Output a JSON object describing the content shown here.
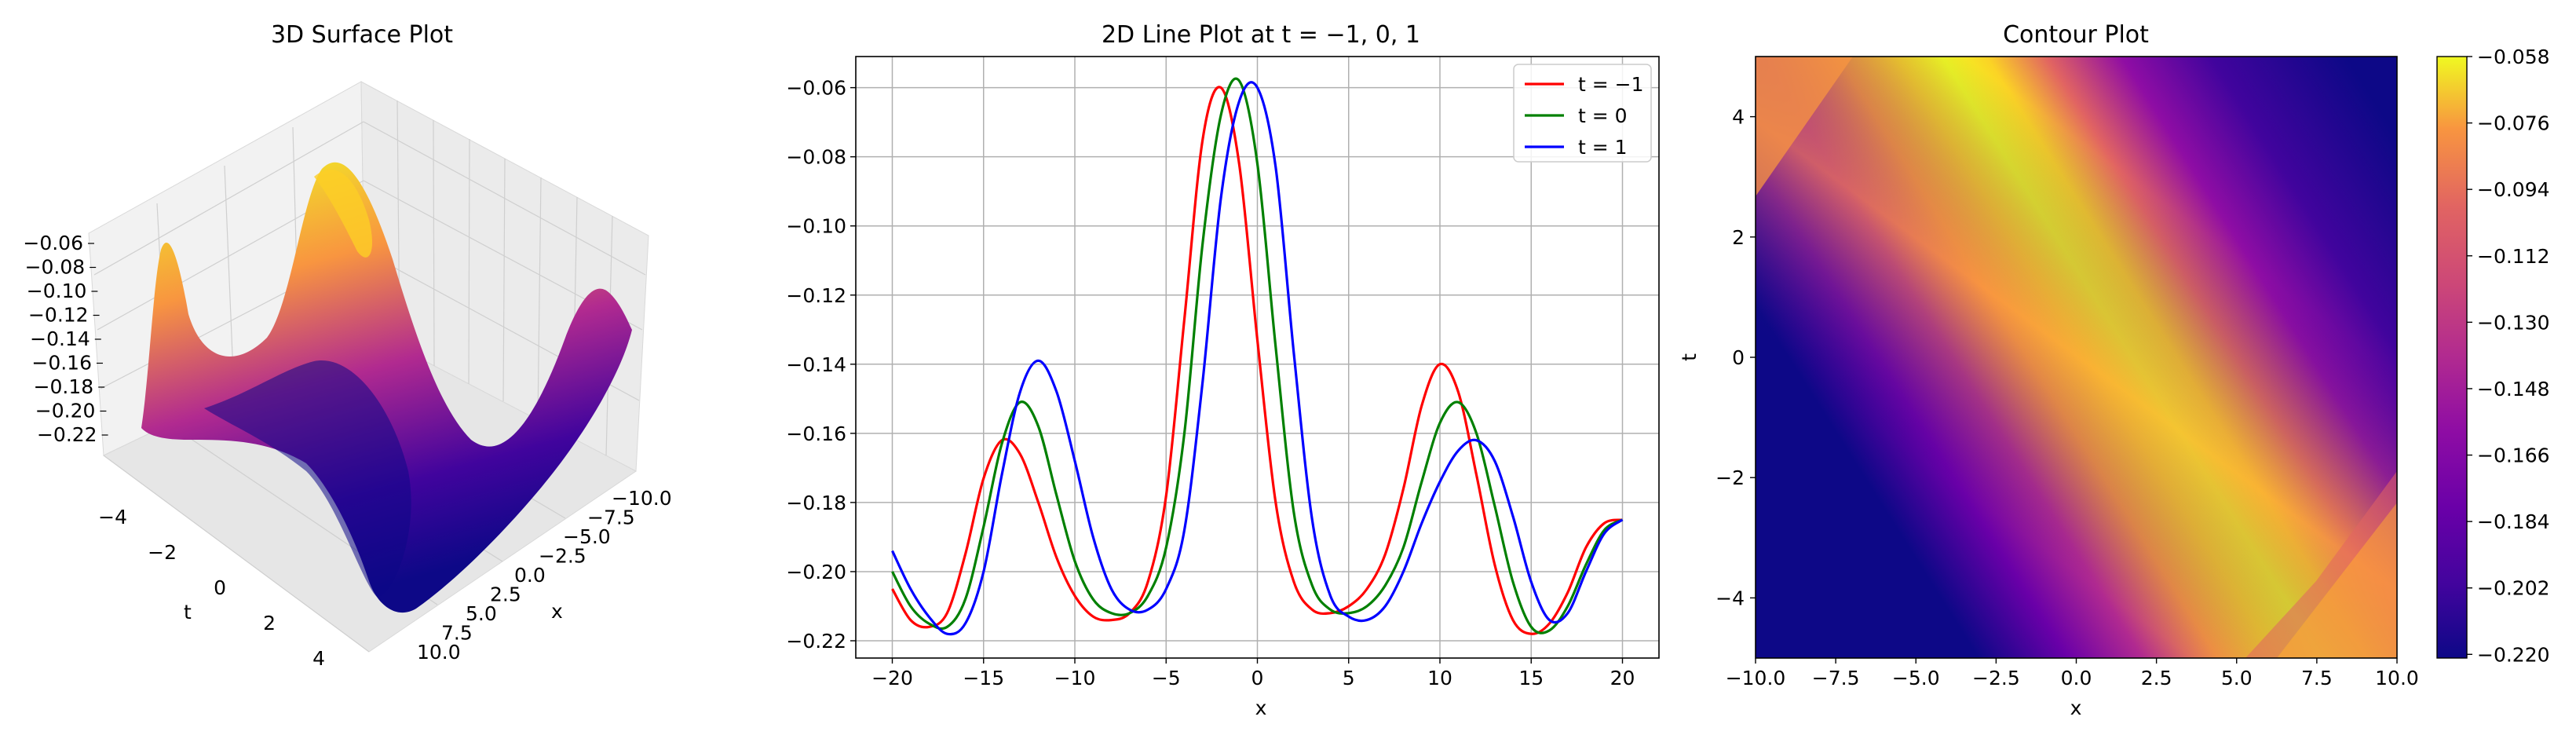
{
  "figure": {
    "panels": [
      {
        "title": "3D Surface Plot",
        "xlabel": "x",
        "ylabel": "t"
      },
      {
        "title": "2D Line Plot at t = −1, 0, 1",
        "xlabel": "x"
      },
      {
        "title": "Contour Plot",
        "xlabel": "x",
        "ylabel": "t"
      }
    ]
  },
  "chart_data": [
    {
      "type": "surface",
      "title": "3D Surface Plot",
      "xlabel": "x",
      "ylabel": "t",
      "colormap": "plasma",
      "x_ticks": [
        "−10.0",
        "−7.5",
        "−5.0",
        "−2.5",
        "0.0",
        "2.5",
        "5.0",
        "7.5",
        "10.0"
      ],
      "t_ticks": [
        "−4",
        "−2",
        "0",
        "2",
        "4"
      ],
      "z_ticks": [
        "−0.06",
        "−0.08",
        "−0.10",
        "−0.12",
        "−0.14",
        "−0.16",
        "−0.18",
        "−0.20",
        "−0.22"
      ],
      "xlim": [
        -10,
        10
      ],
      "tlim": [
        -5,
        5
      ],
      "zlim": [
        -0.22,
        -0.058
      ]
    },
    {
      "type": "line",
      "title": "2D Line Plot at t = −1, 0, 1",
      "xlabel": "x",
      "ylabel": "",
      "xlim": [
        -22,
        22
      ],
      "ylim": [
        -0.225,
        -0.051
      ],
      "x_ticks": [
        "−20",
        "−15",
        "−10",
        "−5",
        "0",
        "5",
        "10",
        "15",
        "20"
      ],
      "x_tick_values": [
        -20,
        -15,
        -10,
        -5,
        0,
        5,
        10,
        15,
        20
      ],
      "y_ticks": [
        "−0.06",
        "−0.08",
        "−0.10",
        "−0.12",
        "−0.14",
        "−0.16",
        "−0.18",
        "−0.20",
        "−0.22"
      ],
      "y_tick_values": [
        -0.06,
        -0.08,
        -0.1,
        -0.12,
        -0.14,
        -0.16,
        -0.18,
        -0.2,
        -0.22
      ],
      "grid": true,
      "legend_position": "top-right",
      "series": [
        {
          "name": "t = −1",
          "color": "#ff0000",
          "points": [
            [
              -20,
              -0.205
            ],
            [
              -19,
              -0.214
            ],
            [
              -18,
              -0.216
            ],
            [
              -17,
              -0.212
            ],
            [
              -16,
              -0.195
            ],
            [
              -15,
              -0.173
            ],
            [
              -14,
              -0.162
            ],
            [
              -13,
              -0.166
            ],
            [
              -12,
              -0.18
            ],
            [
              -11,
              -0.196
            ],
            [
              -10,
              -0.207
            ],
            [
              -9,
              -0.213
            ],
            [
              -8,
              -0.214
            ],
            [
              -7,
              -0.212
            ],
            [
              -6,
              -0.203
            ],
            [
              -5,
              -0.178
            ],
            [
              -4,
              -0.127
            ],
            [
              -3,
              -0.075
            ],
            [
              -2,
              -0.06
            ],
            [
              -1,
              -0.082
            ],
            [
              0,
              -0.133
            ],
            [
              1,
              -0.18
            ],
            [
              2,
              -0.203
            ],
            [
              3,
              -0.211
            ],
            [
              4,
              -0.212
            ],
            [
              5,
              -0.21
            ],
            [
              6,
              -0.205
            ],
            [
              7,
              -0.195
            ],
            [
              8,
              -0.176
            ],
            [
              9,
              -0.152
            ],
            [
              10,
              -0.14
            ],
            [
              11,
              -0.148
            ],
            [
              12,
              -0.172
            ],
            [
              13,
              -0.198
            ],
            [
              14,
              -0.214
            ],
            [
              15,
              -0.218
            ],
            [
              16,
              -0.215
            ],
            [
              17,
              -0.206
            ],
            [
              18,
              -0.193
            ],
            [
              19,
              -0.186
            ],
            [
              20,
              -0.185
            ]
          ]
        },
        {
          "name": "t = 0",
          "color": "#008000",
          "points": [
            [
              -20,
              -0.2
            ],
            [
              -19,
              -0.21
            ],
            [
              -18,
              -0.215
            ],
            [
              -17,
              -0.216
            ],
            [
              -16,
              -0.208
            ],
            [
              -15,
              -0.187
            ],
            [
              -14,
              -0.163
            ],
            [
              -13,
              -0.151
            ],
            [
              -12,
              -0.158
            ],
            [
              -11,
              -0.178
            ],
            [
              -10,
              -0.197
            ],
            [
              -9,
              -0.208
            ],
            [
              -8,
              -0.212
            ],
            [
              -7,
              -0.212
            ],
            [
              -6,
              -0.207
            ],
            [
              -5,
              -0.193
            ],
            [
              -4,
              -0.16
            ],
            [
              -3,
              -0.105
            ],
            [
              -2,
              -0.068
            ],
            [
              -1,
              -0.058
            ],
            [
              0,
              -0.082
            ],
            [
              1,
              -0.135
            ],
            [
              2,
              -0.183
            ],
            [
              3,
              -0.204
            ],
            [
              4,
              -0.211
            ],
            [
              5,
              -0.212
            ],
            [
              6,
              -0.21
            ],
            [
              7,
              -0.204
            ],
            [
              8,
              -0.193
            ],
            [
              9,
              -0.174
            ],
            [
              10,
              -0.157
            ],
            [
              11,
              -0.151
            ],
            [
              12,
              -0.16
            ],
            [
              13,
              -0.181
            ],
            [
              14,
              -0.203
            ],
            [
              15,
              -0.216
            ],
            [
              16,
              -0.217
            ],
            [
              17,
              -0.21
            ],
            [
              18,
              -0.198
            ],
            [
              19,
              -0.188
            ],
            [
              20,
              -0.185
            ]
          ]
        },
        {
          "name": "t = 1",
          "color": "#0000ff",
          "points": [
            [
              -20,
              -0.194
            ],
            [
              -19,
              -0.205
            ],
            [
              -18,
              -0.213
            ],
            [
              -17,
              -0.218
            ],
            [
              -16,
              -0.215
            ],
            [
              -15,
              -0.2
            ],
            [
              -14,
              -0.172
            ],
            [
              -13,
              -0.148
            ],
            [
              -12,
              -0.139
            ],
            [
              -11,
              -0.148
            ],
            [
              -10,
              -0.168
            ],
            [
              -9,
              -0.19
            ],
            [
              -8,
              -0.205
            ],
            [
              -7,
              -0.211
            ],
            [
              -6,
              -0.211
            ],
            [
              -5,
              -0.205
            ],
            [
              -4,
              -0.188
            ],
            [
              -3,
              -0.145
            ],
            [
              -2,
              -0.092
            ],
            [
              -1,
              -0.064
            ],
            [
              0,
              -0.06
            ],
            [
              1,
              -0.083
            ],
            [
              2,
              -0.137
            ],
            [
              3,
              -0.185
            ],
            [
              4,
              -0.207
            ],
            [
              5,
              -0.213
            ],
            [
              6,
              -0.214
            ],
            [
              7,
              -0.21
            ],
            [
              8,
              -0.2
            ],
            [
              9,
              -0.186
            ],
            [
              10,
              -0.174
            ],
            [
              11,
              -0.165
            ],
            [
              12,
              -0.162
            ],
            [
              13,
              -0.168
            ],
            [
              14,
              -0.184
            ],
            [
              15,
              -0.203
            ],
            [
              16,
              -0.214
            ],
            [
              17,
              -0.212
            ],
            [
              18,
              -0.2
            ],
            [
              19,
              -0.189
            ],
            [
              20,
              -0.185
            ]
          ]
        }
      ]
    },
    {
      "type": "heatmap",
      "title": "Contour Plot",
      "xlabel": "x",
      "ylabel": "t",
      "colormap": "plasma",
      "xlim": [
        -10,
        10
      ],
      "ylim": [
        -5,
        5
      ],
      "x_ticks": [
        "−10.0",
        "−7.5",
        "−5.0",
        "−2.5",
        "0.0",
        "2.5",
        "5.0",
        "7.5",
        "10.0"
      ],
      "x_tick_values": [
        -10,
        -7.5,
        -5,
        -2.5,
        0,
        2.5,
        5,
        7.5,
        10
      ],
      "y_ticks": [
        "4",
        "2",
        "0",
        "−2",
        "−4"
      ],
      "y_tick_values": [
        4,
        2,
        0,
        -2,
        -4
      ],
      "colorbar_ticks": [
        "−0.058",
        "−0.076",
        "−0.094",
        "−0.112",
        "−0.130",
        "−0.148",
        "−0.166",
        "−0.184",
        "−0.202",
        "−0.220"
      ],
      "colorbar_values": [
        -0.058,
        -0.076,
        -0.094,
        -0.112,
        -0.13,
        -0.148,
        -0.166,
        -0.184,
        -0.202,
        -0.22
      ],
      "zlim": [
        -0.221,
        -0.058
      ]
    }
  ]
}
